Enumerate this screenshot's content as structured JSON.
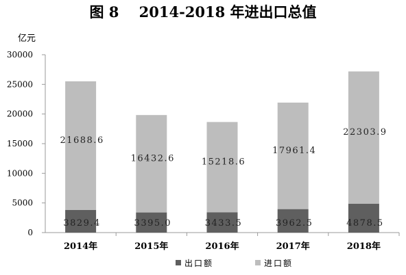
{
  "chart_data": {
    "type": "bar",
    "stacked": true,
    "title": "图 8    2014-2018 年进出口总值",
    "ylabel": "亿元",
    "xlabel": "",
    "categories": [
      "2014年",
      "2015年",
      "2016年",
      "2017年",
      "2018年"
    ],
    "series": [
      {
        "name": "出口额",
        "values": [
          3829.4,
          3395.0,
          3433.5,
          3962.5,
          4878.5
        ],
        "labels": [
          "3829.4",
          "3395.0",
          "3433.5",
          "3962.5",
          "4878.5"
        ],
        "color": "#5f5f5f"
      },
      {
        "name": "进口额",
        "values": [
          21688.6,
          16432.6,
          15218.6,
          17961.4,
          22303.9
        ],
        "labels": [
          "21688.6",
          "16432.6",
          "15218.6",
          "17961.4",
          "22303.9"
        ],
        "color": "#bdbdbd"
      }
    ],
    "ylim": [
      0,
      30000
    ],
    "yticks": [
      "0",
      "5000",
      "10000",
      "15000",
      "20000",
      "25000",
      "30000"
    ],
    "grid": false,
    "legend_position": "bottom"
  }
}
